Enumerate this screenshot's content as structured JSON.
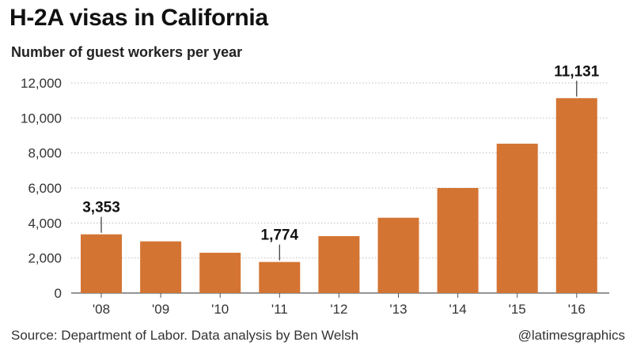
{
  "header": {
    "title": "H-2A visas in California",
    "subtitle": "Number of guest workers per year"
  },
  "colors": {
    "bar": "#d47433",
    "grid": "#bdbdbd",
    "text": "#222222"
  },
  "chart_data": {
    "type": "bar",
    "title": "H-2A visas in California",
    "subtitle": "Number of guest workers per year",
    "categories": [
      "'08",
      "'09",
      "'10",
      "'11",
      "'12",
      "'13",
      "'14",
      "'15",
      "'16"
    ],
    "values": [
      3353,
      2950,
      2300,
      1774,
      3250,
      4300,
      6000,
      8530,
      11131
    ],
    "data_labels": [
      {
        "index": 0,
        "text": "3,353"
      },
      {
        "index": 3,
        "text": "1,774"
      },
      {
        "index": 8,
        "text": "11,131"
      }
    ],
    "yticks": [
      "0",
      "2,000",
      "4,000",
      "6,000",
      "8,000",
      "10,000",
      "12,000"
    ],
    "ylim": [
      0,
      12000
    ],
    "grid": true,
    "grid_style": "dotted",
    "legend": "none"
  },
  "footer": {
    "source": "Source: Department of Labor. Data analysis by Ben Welsh",
    "credit": "@latimesgraphics"
  }
}
